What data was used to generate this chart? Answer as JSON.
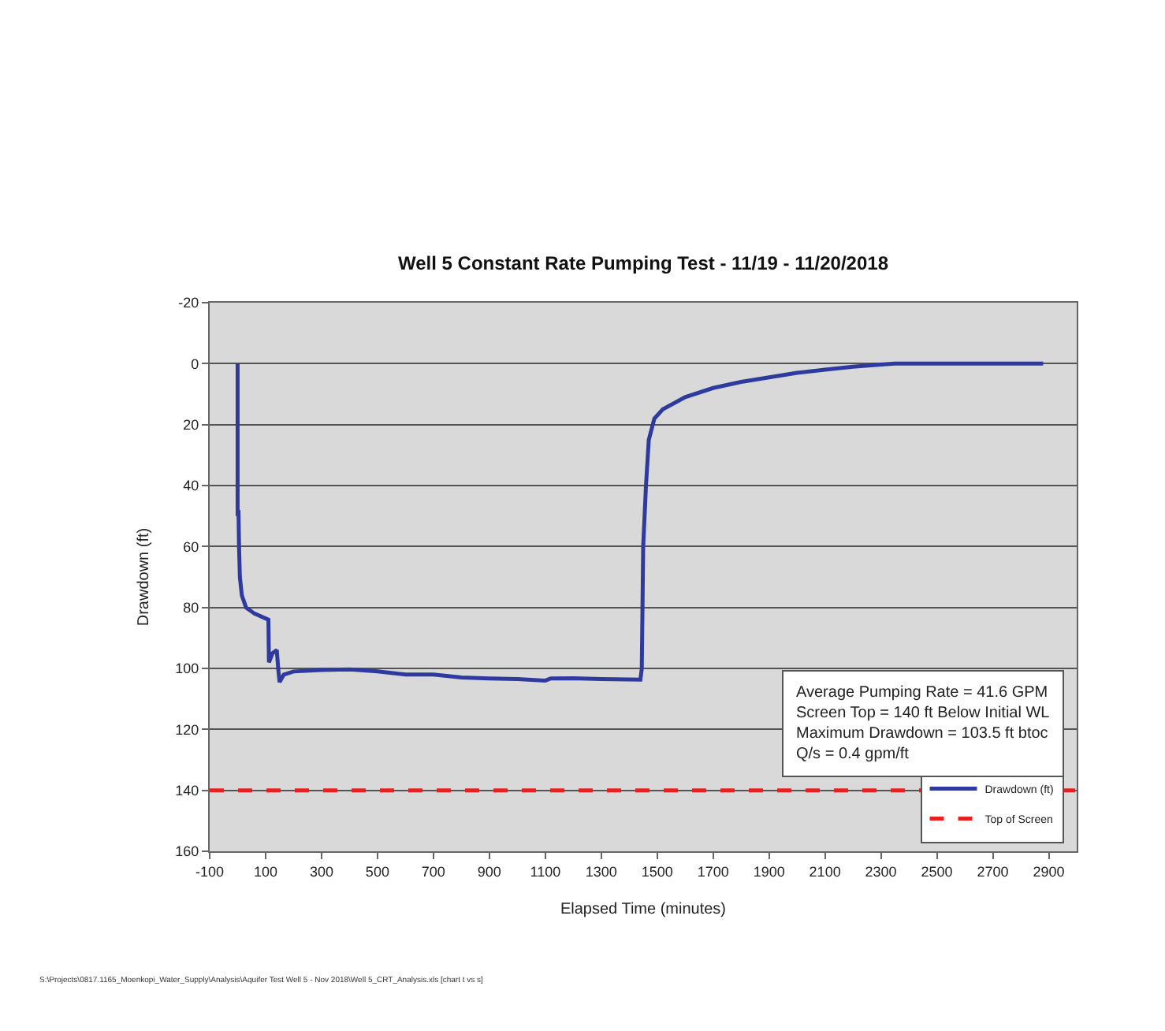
{
  "chart_data": {
    "type": "line",
    "title": "Well 5 Constant Rate Pumping Test - 11/19 - 11/20/2018",
    "xlabel": "Elapsed Time (minutes)",
    "ylabel": "Drawdown (ft)",
    "series": [
      {
        "name": "Drawdown (ft)",
        "color": "#2e3a9e",
        "x": [
          0,
          0,
          3,
          5,
          8,
          15,
          30,
          60,
          110,
          112,
          125,
          140,
          145,
          150,
          165,
          200,
          300,
          400,
          500,
          600,
          700,
          800,
          900,
          1000,
          1100,
          1120,
          1200,
          1300,
          1440,
          1445,
          1450,
          1460,
          1470,
          1490,
          1520,
          1600,
          1700,
          1800,
          1900,
          2000,
          2100,
          2200,
          2300,
          2350,
          2500,
          2700,
          2880
        ],
        "values": [
          0,
          50,
          48,
          60,
          70,
          76,
          80,
          82,
          84,
          98,
          95,
          94,
          100,
          104.5,
          102,
          101,
          100.5,
          100.3,
          101,
          102,
          102,
          103,
          103.3,
          103.5,
          104,
          103.3,
          103.2,
          103.5,
          103.7,
          100,
          60,
          40,
          25,
          18,
          15,
          11,
          8,
          6,
          4.5,
          3,
          2,
          1,
          0.3,
          0,
          0,
          0,
          0
        ]
      }
    ],
    "ref_lines": [
      {
        "axis": "y",
        "value": 140,
        "label": "Top of Screen",
        "color": "#e8201f",
        "line_style": "dashed"
      }
    ],
    "annotations": [
      "Average Pumping Rate = 41.6 GPM\nScreen Top = 140 ft Below Initial WL\nMaximum Drawdown = 103.5 ft btoc\nQ/s = 0.4 gpm/ft",
      "S:\\Projects\\0817.1165_Moenkopi_Water_Supply\\Analysis\\Aquifer Test Well 5 - Nov 2018\\Well 5_CRT_Analysis.xls [chart t vs s]"
    ],
    "xlim": [
      -100,
      3000
    ],
    "xticks": [
      -100,
      100,
      300,
      500,
      700,
      900,
      1100,
      1300,
      1500,
      1700,
      1900,
      2100,
      2300,
      2500,
      2700,
      2900
    ],
    "ylim": [
      160,
      -20
    ],
    "yticks": [
      -20,
      0,
      20,
      40,
      60,
      80,
      100,
      120,
      140,
      160
    ],
    "grid": "y",
    "legend": "bottom right",
    "marker": "none",
    "line_style": "solid"
  }
}
